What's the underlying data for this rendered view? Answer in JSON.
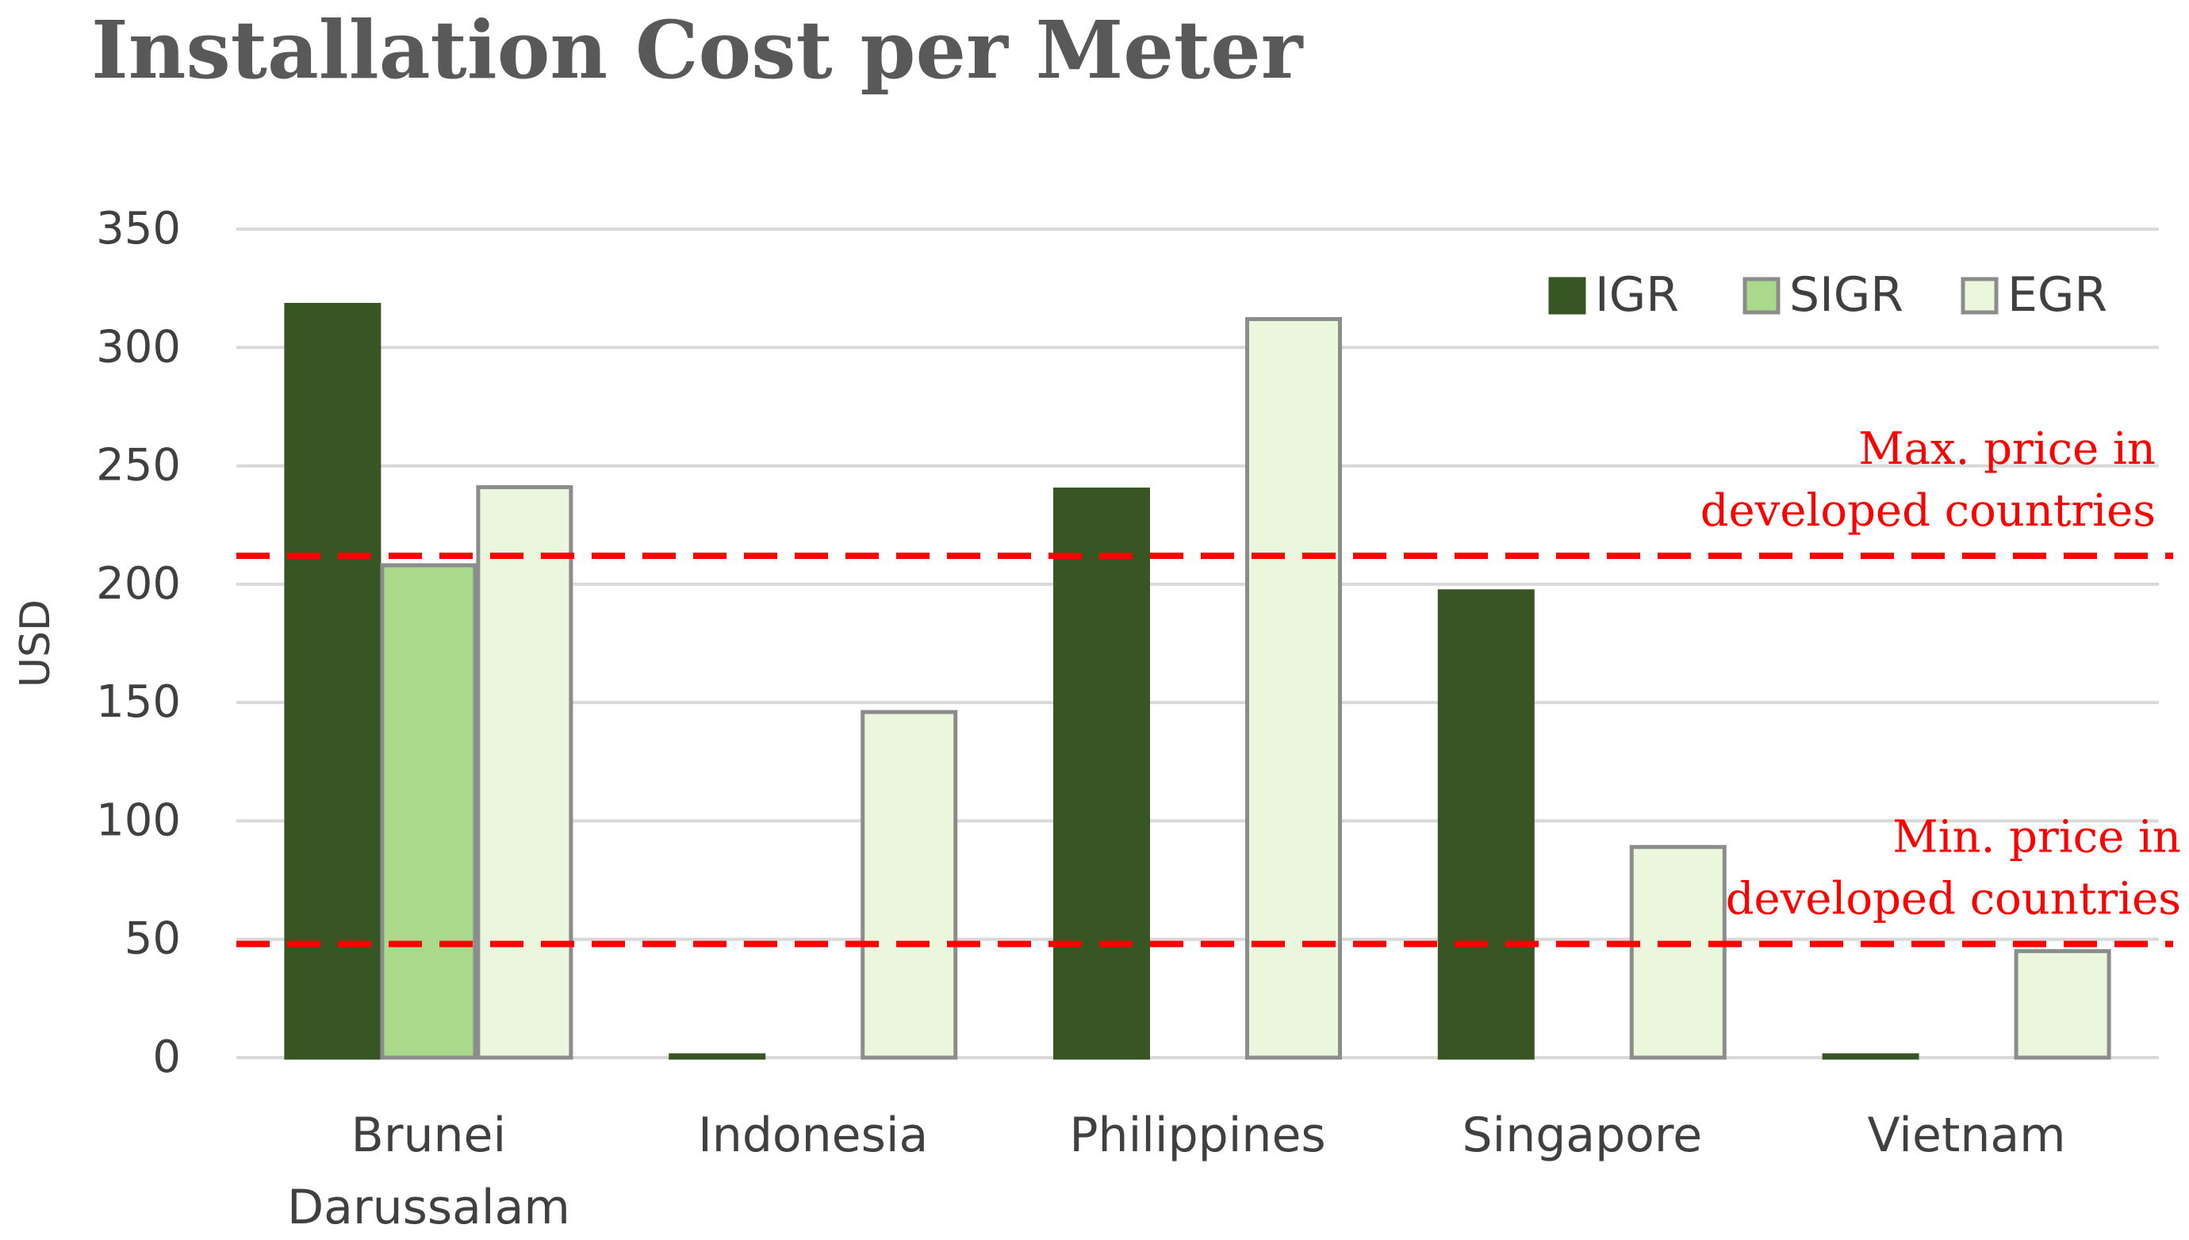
{
  "chart_data": {
    "type": "bar",
    "title": "Installation Cost per Meter",
    "ylabel": "USD",
    "xlabel": "",
    "ylim": [
      0,
      350
    ],
    "yticks": [
      0,
      50,
      100,
      150,
      200,
      250,
      300,
      350
    ],
    "grid": true,
    "legend_position": "top-right",
    "categories": [
      [
        "Brunei",
        "Darussalam"
      ],
      [
        "Indonesia"
      ],
      [
        "Philippines"
      ],
      [
        "Singapore"
      ],
      [
        "Vietnam"
      ]
    ],
    "series": [
      {
        "name": "IGR",
        "values": [
          318,
          1,
          240,
          197,
          1
        ],
        "color": "#375623",
        "stroke": "#375623"
      },
      {
        "name": "SIGR",
        "values": [
          208,
          0,
          0,
          0,
          0
        ],
        "color": "#a9d98a",
        "stroke": "#8c8c8c"
      },
      {
        "name": "EGR",
        "values": [
          241,
          146,
          312,
          89,
          45
        ],
        "color": "#ebf7dc",
        "stroke": "#8c8c8c"
      }
    ],
    "reference_lines": [
      {
        "value": 212,
        "label": [
          "Max. price in",
          "developed countries"
        ],
        "color": "#ff0000"
      },
      {
        "value": 48,
        "label": [
          "Min. price in",
          "developed countries"
        ],
        "color": "#ff0000"
      }
    ]
  }
}
